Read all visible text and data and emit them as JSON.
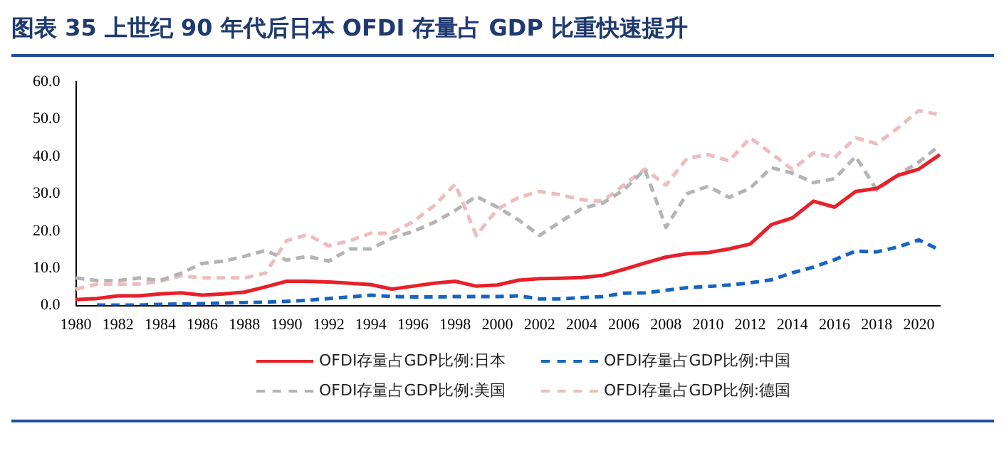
{
  "chart_data": {
    "type": "line",
    "title": "图表 35  上世纪 90 年代后日本 OFDI 存量占 GDP 比重快速提升",
    "categories": [
      "1980",
      null,
      "1982",
      null,
      "1984",
      null,
      "1986",
      null,
      "1988",
      null,
      "1990",
      null,
      "1992",
      null,
      "1994",
      null,
      "1996",
      null,
      "1998",
      null,
      "2000",
      null,
      "2002",
      null,
      "2004",
      null,
      "2006",
      null,
      "2008",
      null,
      "2010",
      null,
      "2012",
      null,
      "2014",
      null,
      "2016",
      null,
      "2018",
      null,
      "2020",
      null
    ],
    "series": [
      {
        "name": "OFDI存量占GDP比例:日本",
        "color": "#e8202a",
        "line_style": "solid",
        "values": [
          1.6,
          1.9,
          2.6,
          2.6,
          3.1,
          3.4,
          2.8,
          3.1,
          3.6,
          5.0,
          6.5,
          6.5,
          6.3,
          6.0,
          5.6,
          4.4,
          5.2,
          6.0,
          6.5,
          5.2,
          5.5,
          6.8,
          7.2,
          7.3,
          7.5,
          8.1,
          9.7,
          11.4,
          13.0,
          13.9,
          14.2,
          15.2,
          16.5,
          21.7,
          23.5,
          28.0,
          26.4,
          30.6,
          31.4,
          34.9,
          36.6,
          40.5
        ]
      },
      {
        "name": "OFDI存量占GDP比例:中国",
        "color": "#1565c0",
        "line_style": "dashed",
        "values": [
          null,
          0.1,
          0.1,
          0.1,
          0.3,
          0.4,
          0.5,
          0.7,
          0.8,
          0.9,
          1.1,
          1.4,
          1.9,
          2.3,
          2.8,
          2.4,
          2.3,
          2.3,
          2.4,
          2.4,
          2.4,
          2.6,
          1.8,
          1.8,
          2.1,
          2.4,
          3.3,
          3.4,
          4.1,
          4.8,
          5.1,
          5.5,
          6.1,
          6.9,
          8.8,
          10.3,
          12.3,
          14.6,
          14.4,
          15.7,
          17.6,
          14.9
        ]
      },
      {
        "name": "OFDI存量占GDP比例:美国",
        "color": "#b4b4b4",
        "line_style": "dashed",
        "values": [
          7.4,
          6.7,
          6.7,
          7.4,
          6.7,
          8.7,
          11.3,
          11.9,
          13.2,
          14.8,
          12.2,
          13.2,
          11.9,
          15.2,
          15.2,
          18.1,
          19.9,
          22.3,
          25.5,
          29.3,
          26.4,
          23.0,
          18.8,
          22.5,
          26.0,
          27.5,
          31.0,
          36.5,
          21.0,
          30.0,
          32.0,
          29.0,
          31.5,
          37.0,
          35.5,
          33.0,
          34.0,
          40.0,
          31.0,
          35.0,
          38.5,
          43.0
        ]
      },
      {
        "name": "OFDI存量占GDP比例:德国",
        "color": "#eebcbc",
        "line_style": "dashed",
        "values": [
          4.4,
          5.7,
          5.7,
          5.8,
          6.5,
          8.0,
          7.4,
          7.4,
          7.4,
          8.7,
          17.4,
          19.0,
          16.0,
          17.4,
          19.4,
          19.4,
          22.5,
          26.8,
          32.6,
          18.8,
          25.8,
          29.0,
          30.6,
          29.7,
          28.4,
          28.0,
          32.3,
          36.6,
          32.3,
          39.5,
          40.5,
          38.8,
          45.0,
          40.8,
          36.5,
          41.0,
          39.7,
          45.0,
          43.4,
          47.6,
          52.3,
          51.2
        ]
      }
    ],
    "ylim": [
      0,
      60
    ],
    "yticks": [
      {
        "value": 0,
        "label": "0.0"
      },
      {
        "value": 10,
        "label": "10.0"
      },
      {
        "value": 20,
        "label": "20.0"
      },
      {
        "value": 30,
        "label": "30.0"
      },
      {
        "value": 40,
        "label": "40.0"
      },
      {
        "value": 50,
        "label": "50.0"
      },
      {
        "value": 60,
        "label": "60.0"
      }
    ],
    "grid": false,
    "legend": "bottom",
    "marker": "none"
  }
}
